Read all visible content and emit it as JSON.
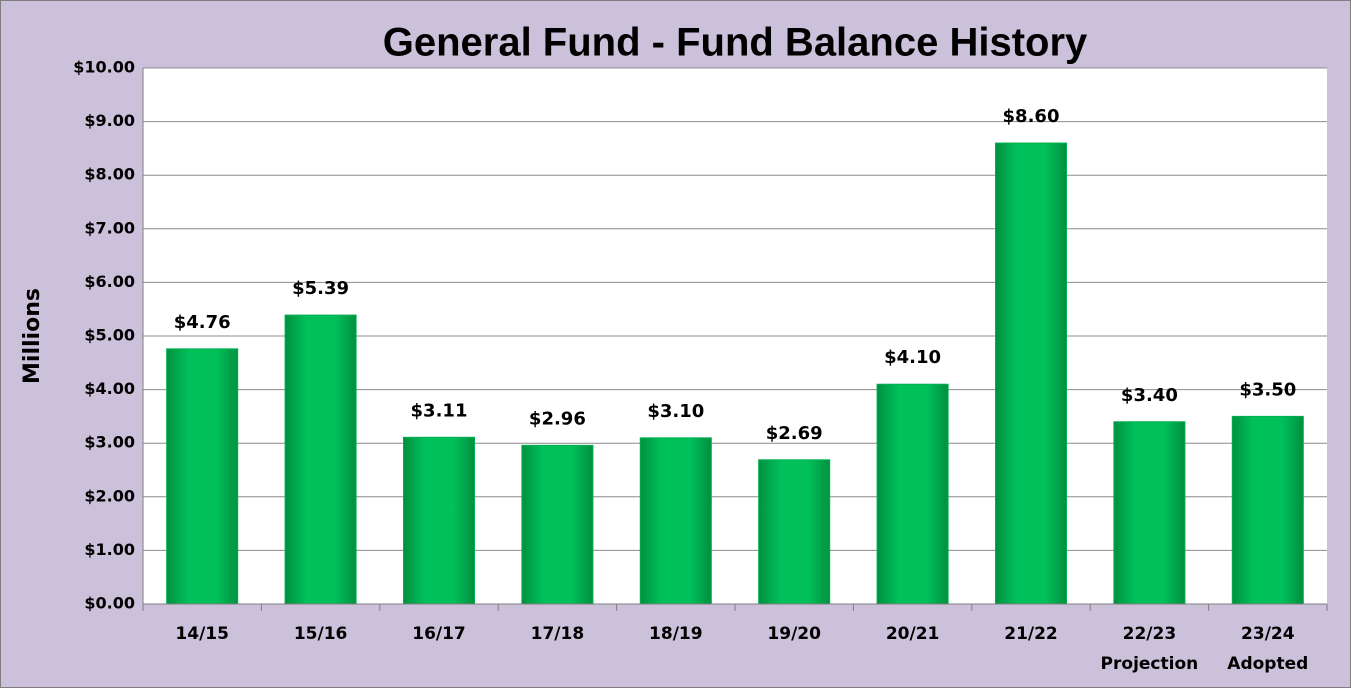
{
  "chart_data": {
    "type": "bar",
    "title": "General Fund - Fund Balance History",
    "y_label": "Millions",
    "categories": [
      "14/15",
      "15/16",
      "16/17",
      "17/18",
      "18/19",
      "19/20",
      "20/21",
      "21/22",
      "22/23",
      "23/24"
    ],
    "category_sublabels": [
      null,
      null,
      null,
      null,
      null,
      null,
      null,
      null,
      "Projection",
      "Adopted"
    ],
    "values": [
      4.76,
      5.39,
      3.11,
      2.96,
      3.1,
      2.69,
      4.1,
      8.6,
      3.4,
      3.5
    ],
    "value_labels": [
      "$4.76",
      "$5.39",
      "$3.11",
      "$2.96",
      "$3.10",
      "$2.69",
      "$4.10",
      "$8.60",
      "$3.40",
      "$3.50"
    ],
    "color": "#00b050",
    "ylim": [
      0,
      10
    ],
    "yticks": [
      {
        "value": 0,
        "label": "$0.00"
      },
      {
        "value": 1,
        "label": "$1.00"
      },
      {
        "value": 2,
        "label": "$2.00"
      },
      {
        "value": 3,
        "label": "$3.00"
      },
      {
        "value": 4,
        "label": "$4.00"
      },
      {
        "value": 5,
        "label": "$5.00"
      },
      {
        "value": 6,
        "label": "$6.00"
      },
      {
        "value": 7,
        "label": "$7.00"
      },
      {
        "value": 8,
        "label": "$8.00"
      },
      {
        "value": 9,
        "label": "$9.00"
      },
      {
        "value": 10,
        "label": "$10.00"
      }
    ],
    "grid": true
  }
}
